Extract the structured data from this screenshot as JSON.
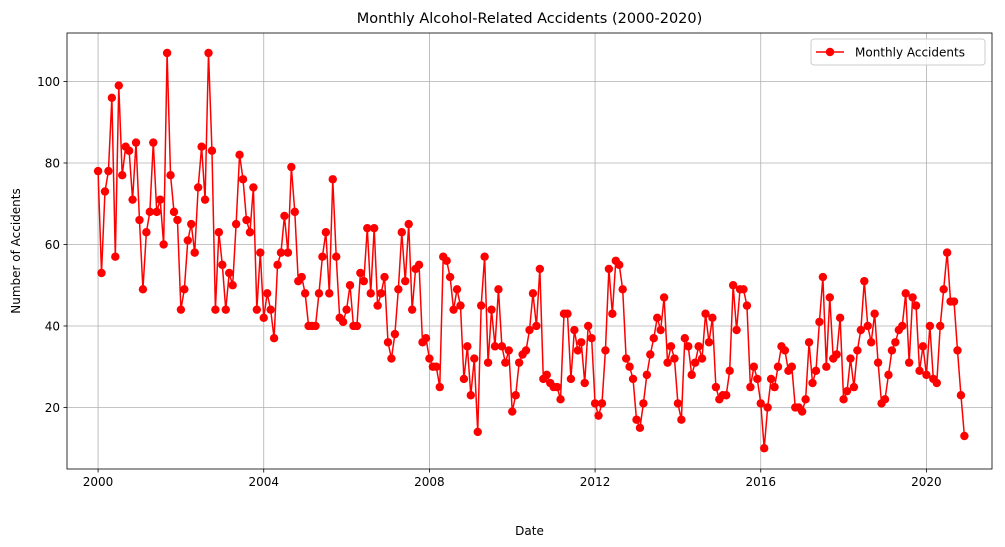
{
  "chart_data": {
    "type": "line",
    "title": "Monthly Alcohol-Related Accidents (2000-2020)",
    "xlabel": "Date",
    "ylabel": "Number of Accidents",
    "x_start": "2000-01",
    "x_frequency": "monthly",
    "xlim": [
      "1999-04",
      "2021-08"
    ],
    "ylim": [
      4.9,
      111.9
    ],
    "xticks": [
      "2000",
      "2004",
      "2008",
      "2012",
      "2016",
      "2020"
    ],
    "yticks": [
      20,
      40,
      60,
      80,
      100
    ],
    "grid": true,
    "legend_position": "top-right",
    "series": [
      {
        "name": "Monthly Accidents",
        "color": "#ff0000",
        "marker": "circle",
        "values": [
          78,
          53,
          73,
          78,
          96,
          57,
          99,
          77,
          84,
          83,
          71,
          85,
          66,
          49,
          63,
          68,
          85,
          68,
          71,
          60,
          107,
          77,
          68,
          66,
          44,
          49,
          61,
          65,
          58,
          74,
          84,
          71,
          107,
          83,
          44,
          63,
          55,
          44,
          53,
          50,
          65,
          82,
          76,
          66,
          63,
          74,
          44,
          58,
          42,
          48,
          44,
          37,
          55,
          58,
          67,
          58,
          79,
          68,
          51,
          52,
          48,
          40,
          40,
          40,
          48,
          57,
          63,
          48,
          76,
          57,
          42,
          41,
          44,
          50,
          40,
          40,
          53,
          51,
          64,
          48,
          64,
          45,
          48,
          52,
          36,
          32,
          38,
          49,
          63,
          51,
          65,
          44,
          54,
          55,
          36,
          37,
          32,
          30,
          30,
          25,
          57,
          56,
          52,
          44,
          49,
          45,
          27,
          35,
          23,
          32,
          14,
          45,
          57,
          31,
          44,
          35,
          49,
          35,
          31,
          34,
          19,
          23,
          31,
          33,
          34,
          39,
          48,
          40,
          54,
          27,
          28,
          26,
          25,
          25,
          22,
          43,
          43,
          27,
          39,
          34,
          36,
          26,
          40,
          37,
          21,
          18,
          21,
          34,
          54,
          43,
          56,
          55,
          49,
          32,
          30,
          27,
          17,
          15,
          21,
          28,
          33,
          37,
          42,
          39,
          47,
          31,
          35,
          32,
          21,
          17,
          37,
          35,
          28,
          31,
          35,
          32,
          43,
          36,
          42,
          25,
          22,
          23,
          23,
          29,
          50,
          39,
          49,
          49,
          45,
          25,
          30,
          27,
          21,
          10,
          20,
          27,
          25,
          30,
          35,
          34,
          29,
          30,
          20,
          20,
          19,
          22,
          36,
          26,
          29,
          41,
          52,
          30,
          47,
          32,
          33,
          42,
          22,
          24,
          32,
          25,
          34,
          39,
          51,
          40,
          36,
          43,
          31,
          21,
          22,
          28,
          34,
          36,
          39,
          40,
          48,
          31,
          47,
          45,
          29,
          35,
          28,
          40,
          27,
          26,
          40,
          49,
          58,
          46,
          46,
          34,
          23,
          13
        ]
      }
    ]
  }
}
